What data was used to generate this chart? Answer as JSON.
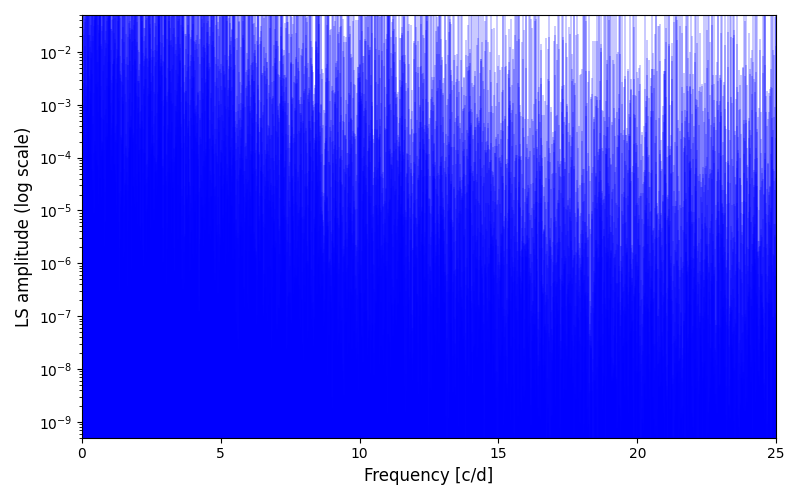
{
  "line_color": "#0000FF",
  "xlabel": "Frequency [c/d]",
  "ylabel": "LS amplitude (log scale)",
  "xlim": [
    0,
    25
  ],
  "ylim": [
    5e-10,
    0.05
  ],
  "yscale": "log",
  "figsize": [
    8.0,
    5.0
  ],
  "dpi": 100,
  "freq_max": 25.0,
  "n_points": 8000,
  "seed": 42
}
